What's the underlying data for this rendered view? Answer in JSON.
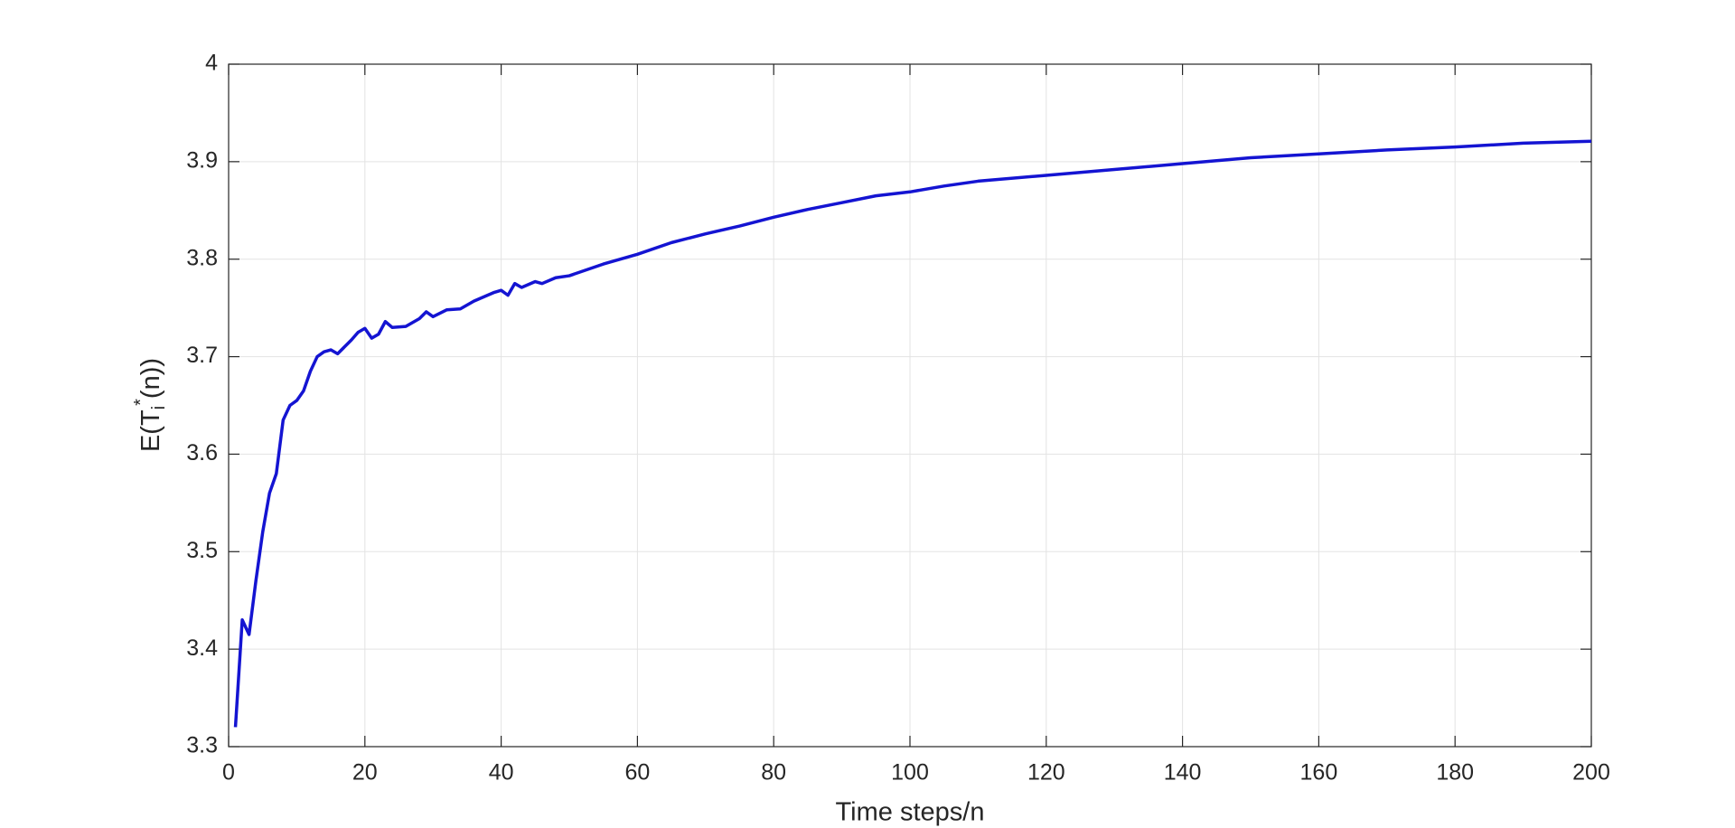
{
  "chart_data": {
    "type": "line",
    "xlabel": "Time steps/n",
    "ylabel": [
      "E(T",
      "i",
      "*",
      "(n))"
    ],
    "xlim": [
      0,
      200
    ],
    "xticks": [
      0,
      20,
      40,
      60,
      80,
      100,
      120,
      140,
      160,
      180,
      200
    ],
    "ylim": [
      3.3,
      4
    ],
    "yticks": [
      3.3,
      3.4,
      3.5,
      3.6,
      3.7,
      3.8,
      3.9,
      4
    ],
    "grid": true,
    "series": [
      {
        "color": "#1414d2",
        "x": [
          1,
          2,
          3,
          4,
          5,
          6,
          7,
          8,
          9,
          10,
          11,
          12,
          13,
          14,
          15,
          16,
          17,
          18,
          19,
          20,
          21,
          22,
          23,
          24,
          26,
          28,
          29,
          30,
          32,
          34,
          36,
          37,
          39,
          40,
          41,
          42,
          43,
          45,
          46,
          48,
          50,
          55,
          60,
          65,
          70,
          75,
          80,
          85,
          90,
          95,
          100,
          105,
          110,
          120,
          130,
          140,
          150,
          160,
          170,
          180,
          190,
          200
        ],
        "values": [
          3.32,
          3.43,
          3.415,
          3.47,
          3.52,
          3.56,
          3.58,
          3.635,
          3.65,
          3.655,
          3.665,
          3.685,
          3.7,
          3.705,
          3.707,
          3.703,
          3.71,
          3.717,
          3.725,
          3.729,
          3.719,
          3.723,
          3.736,
          3.73,
          3.731,
          3.739,
          3.746,
          3.741,
          3.748,
          3.749,
          3.757,
          3.76,
          3.766,
          3.768,
          3.763,
          3.775,
          3.771,
          3.777,
          3.775,
          3.781,
          3.783,
          3.795,
          3.805,
          3.817,
          3.826,
          3.834,
          3.843,
          3.851,
          3.858,
          3.865,
          3.869,
          3.875,
          3.88,
          3.886,
          3.892,
          3.898,
          3.904,
          3.908,
          3.912,
          3.915,
          3.919,
          3.921
        ]
      }
    ]
  }
}
